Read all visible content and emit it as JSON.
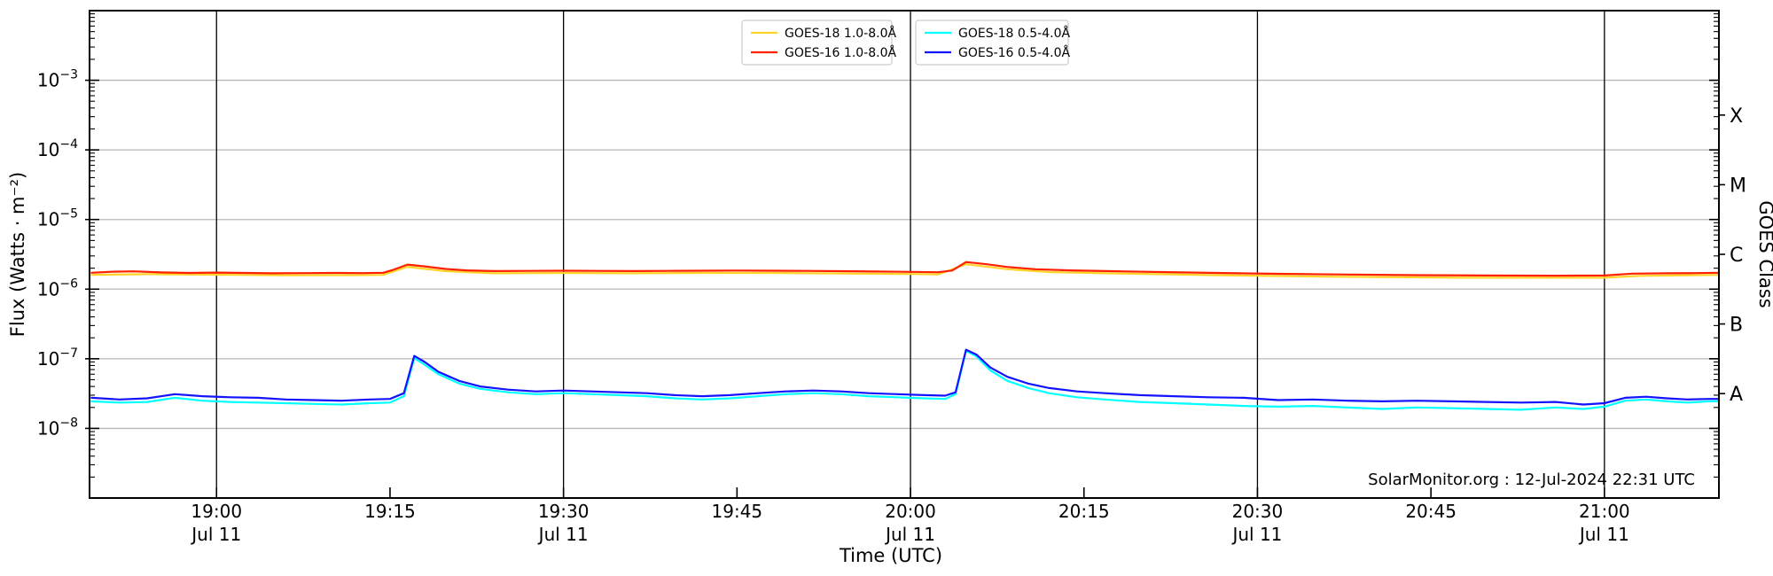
{
  "figure": {
    "background": "#ffffff",
    "frame_color": "#000000",
    "grid_color": "#b8b8b8"
  },
  "watermark": "SolarMonitor.org : 12-Jul-2024 22:31 UTC",
  "chart_data": {
    "type": "line",
    "title": "",
    "xlabel": "Time (UTC)",
    "ylabel": "Flux (Watts · m⁻²)",
    "ylabel_right": "GOES Class",
    "x_axis": {
      "unit": "hours UTC on Jul 11",
      "start_hours": 18.817,
      "end_hours": 21.165,
      "major_ticks": [
        {
          "hours": 19.0,
          "label": "19:00",
          "date": "Jul 11",
          "grid": true
        },
        {
          "hours": 19.25,
          "label": "19:15"
        },
        {
          "hours": 19.5,
          "label": "19:30",
          "date": "Jul 11",
          "grid": true
        },
        {
          "hours": 19.75,
          "label": "19:45"
        },
        {
          "hours": 20.0,
          "label": "20:00",
          "date": "Jul 11",
          "grid": true
        },
        {
          "hours": 20.25,
          "label": "20:15"
        },
        {
          "hours": 20.5,
          "label": "20:30",
          "date": "Jul 11",
          "grid": true
        },
        {
          "hours": 20.75,
          "label": "20:45"
        },
        {
          "hours": 21.0,
          "label": "21:00",
          "date": "Jul 11",
          "grid": true
        }
      ]
    },
    "y_axis": {
      "scale": "log",
      "min_exp": -9,
      "max_exp": -2,
      "tick_exponents": [
        -3,
        -4,
        -5,
        -6,
        -7,
        -8
      ],
      "grid_exponents": [
        -3,
        -4,
        -5,
        -6,
        -7,
        -8
      ]
    },
    "goes_classes": [
      {
        "label": "X",
        "center_exp": -3.5
      },
      {
        "label": "M",
        "center_exp": -4.5
      },
      {
        "label": "C",
        "center_exp": -5.5
      },
      {
        "label": "B",
        "center_exp": -6.5
      },
      {
        "label": "A",
        "center_exp": -7.5
      }
    ],
    "legend": {
      "groups": [
        {
          "entries": [
            "goes18_long",
            "goes16_long"
          ]
        },
        {
          "entries": [
            "goes18_short",
            "goes16_short"
          ]
        }
      ]
    },
    "series": [
      {
        "id": "goes18_long",
        "name": "GOES-18 1.0-8.0Å",
        "color": "#ffd42a",
        "points": [
          [
            18.82,
            1.6e-06
          ],
          [
            18.9,
            1.64e-06
          ],
          [
            19.0,
            1.61e-06
          ],
          [
            19.1,
            1.58e-06
          ],
          [
            19.2,
            1.59e-06
          ],
          [
            19.24,
            1.6e-06
          ],
          [
            19.275,
            2.09e-06
          ],
          [
            19.33,
            1.81e-06
          ],
          [
            19.4,
            1.69e-06
          ],
          [
            19.5,
            1.71e-06
          ],
          [
            19.6,
            1.69e-06
          ],
          [
            19.7,
            1.71e-06
          ],
          [
            19.8,
            1.71e-06
          ],
          [
            19.9,
            1.68e-06
          ],
          [
            20.0,
            1.65e-06
          ],
          [
            20.04,
            1.63e-06
          ],
          [
            20.08,
            2.28e-06
          ],
          [
            20.14,
            1.93e-06
          ],
          [
            20.2,
            1.76e-06
          ],
          [
            20.3,
            1.68e-06
          ],
          [
            20.44,
            1.59e-06
          ],
          [
            20.6,
            1.51e-06
          ],
          [
            20.8,
            1.46e-06
          ],
          [
            21.0,
            1.46e-06
          ],
          [
            21.05,
            1.55e-06
          ],
          [
            21.165,
            1.6e-06
          ]
        ]
      },
      {
        "id": "goes16_long",
        "name": "GOES-16 1.0-8.0Å",
        "color": "#ff2000",
        "points": [
          [
            18.82,
            1.72e-06
          ],
          [
            18.85,
            1.78e-06
          ],
          [
            18.88,
            1.8e-06
          ],
          [
            18.92,
            1.74e-06
          ],
          [
            18.96,
            1.71e-06
          ],
          [
            19.0,
            1.73e-06
          ],
          [
            19.04,
            1.71e-06
          ],
          [
            19.08,
            1.69e-06
          ],
          [
            19.13,
            1.7e-06
          ],
          [
            19.17,
            1.71e-06
          ],
          [
            19.21,
            1.7e-06
          ],
          [
            19.24,
            1.72e-06
          ],
          [
            19.255,
            1.9e-06
          ],
          [
            19.275,
            2.25e-06
          ],
          [
            19.3,
            2.12e-06
          ],
          [
            19.33,
            1.95e-06
          ],
          [
            19.36,
            1.86e-06
          ],
          [
            19.4,
            1.82e-06
          ],
          [
            19.45,
            1.83e-06
          ],
          [
            19.5,
            1.84e-06
          ],
          [
            19.55,
            1.83e-06
          ],
          [
            19.6,
            1.82e-06
          ],
          [
            19.65,
            1.83e-06
          ],
          [
            19.7,
            1.84e-06
          ],
          [
            19.75,
            1.85e-06
          ],
          [
            19.8,
            1.84e-06
          ],
          [
            19.85,
            1.83e-06
          ],
          [
            19.9,
            1.81e-06
          ],
          [
            19.95,
            1.79e-06
          ],
          [
            20.0,
            1.77e-06
          ],
          [
            20.04,
            1.75e-06
          ],
          [
            20.06,
            1.85e-06
          ],
          [
            20.08,
            2.45e-06
          ],
          [
            20.11,
            2.28e-06
          ],
          [
            20.14,
            2.08e-06
          ],
          [
            20.18,
            1.93e-06
          ],
          [
            20.23,
            1.86e-06
          ],
          [
            20.29,
            1.81e-06
          ],
          [
            20.36,
            1.76e-06
          ],
          [
            20.44,
            1.71e-06
          ],
          [
            20.53,
            1.66e-06
          ],
          [
            20.63,
            1.62e-06
          ],
          [
            20.73,
            1.59e-06
          ],
          [
            20.83,
            1.57e-06
          ],
          [
            20.93,
            1.56e-06
          ],
          [
            21.0,
            1.57e-06
          ],
          [
            21.04,
            1.67e-06
          ],
          [
            21.09,
            1.69e-06
          ],
          [
            21.13,
            1.7e-06
          ],
          [
            21.165,
            1.72e-06
          ]
        ]
      },
      {
        "id": "goes18_short",
        "name": "GOES-18 0.5-4.0Å",
        "color": "#00ffff",
        "points": [
          [
            18.82,
            2.45e-08
          ],
          [
            18.86,
            2.35e-08
          ],
          [
            18.9,
            2.4e-08
          ],
          [
            18.94,
            2.75e-08
          ],
          [
            18.98,
            2.5e-08
          ],
          [
            19.02,
            2.4e-08
          ],
          [
            19.06,
            2.35e-08
          ],
          [
            19.1,
            2.3e-08
          ],
          [
            19.14,
            2.25e-08
          ],
          [
            19.18,
            2.2e-08
          ],
          [
            19.22,
            2.3e-08
          ],
          [
            19.25,
            2.35e-08
          ],
          [
            19.27,
            2.9e-08
          ],
          [
            19.285,
            1.02e-07
          ],
          [
            19.3,
            8.2e-08
          ],
          [
            19.32,
            6e-08
          ],
          [
            19.35,
            4.4e-08
          ],
          [
            19.38,
            3.7e-08
          ],
          [
            19.42,
            3.3e-08
          ],
          [
            19.46,
            3.1e-08
          ],
          [
            19.5,
            3.2e-08
          ],
          [
            19.54,
            3.1e-08
          ],
          [
            19.58,
            3e-08
          ],
          [
            19.62,
            2.9e-08
          ],
          [
            19.66,
            2.7e-08
          ],
          [
            19.7,
            2.6e-08
          ],
          [
            19.74,
            2.7e-08
          ],
          [
            19.78,
            2.9e-08
          ],
          [
            19.82,
            3.1e-08
          ],
          [
            19.86,
            3.2e-08
          ],
          [
            19.9,
            3.1e-08
          ],
          [
            19.94,
            2.9e-08
          ],
          [
            19.98,
            2.8e-08
          ],
          [
            20.02,
            2.7e-08
          ],
          [
            20.05,
            2.65e-08
          ],
          [
            20.065,
            3.1e-08
          ],
          [
            20.08,
            1.3e-07
          ],
          [
            20.095,
            1.08e-07
          ],
          [
            20.115,
            6.8e-08
          ],
          [
            20.14,
            4.8e-08
          ],
          [
            20.17,
            3.8e-08
          ],
          [
            20.2,
            3.2e-08
          ],
          [
            20.24,
            2.8e-08
          ],
          [
            20.28,
            2.6e-08
          ],
          [
            20.33,
            2.4e-08
          ],
          [
            20.38,
            2.3e-08
          ],
          [
            20.43,
            2.2e-08
          ],
          [
            20.48,
            2.1e-08
          ],
          [
            20.53,
            2.05e-08
          ],
          [
            20.58,
            2.1e-08
          ],
          [
            20.63,
            2e-08
          ],
          [
            20.68,
            1.9e-08
          ],
          [
            20.73,
            2e-08
          ],
          [
            20.78,
            1.95e-08
          ],
          [
            20.83,
            1.9e-08
          ],
          [
            20.88,
            1.85e-08
          ],
          [
            20.93,
            2e-08
          ],
          [
            20.97,
            1.9e-08
          ],
          [
            21.0,
            2.05e-08
          ],
          [
            21.03,
            2.5e-08
          ],
          [
            21.06,
            2.6e-08
          ],
          [
            21.09,
            2.45e-08
          ],
          [
            21.12,
            2.35e-08
          ],
          [
            21.15,
            2.45e-08
          ],
          [
            21.165,
            2.45e-08
          ]
        ]
      },
      {
        "id": "goes16_short",
        "name": "GOES-16 0.5-4.0Å",
        "color": "#1313ff",
        "points": [
          [
            18.82,
            2.75e-08
          ],
          [
            18.86,
            2.6e-08
          ],
          [
            18.9,
            2.7e-08
          ],
          [
            18.94,
            3.1e-08
          ],
          [
            18.98,
            2.9e-08
          ],
          [
            19.02,
            2.8e-08
          ],
          [
            19.06,
            2.75e-08
          ],
          [
            19.1,
            2.6e-08
          ],
          [
            19.14,
            2.55e-08
          ],
          [
            19.18,
            2.5e-08
          ],
          [
            19.22,
            2.6e-08
          ],
          [
            19.25,
            2.65e-08
          ],
          [
            19.27,
            3.2e-08
          ],
          [
            19.285,
            1.1e-07
          ],
          [
            19.3,
            9e-08
          ],
          [
            19.32,
            6.5e-08
          ],
          [
            19.35,
            4.8e-08
          ],
          [
            19.38,
            4e-08
          ],
          [
            19.42,
            3.6e-08
          ],
          [
            19.46,
            3.4e-08
          ],
          [
            19.5,
            3.5e-08
          ],
          [
            19.54,
            3.4e-08
          ],
          [
            19.58,
            3.3e-08
          ],
          [
            19.62,
            3.2e-08
          ],
          [
            19.66,
            3e-08
          ],
          [
            19.7,
            2.9e-08
          ],
          [
            19.74,
            3e-08
          ],
          [
            19.78,
            3.2e-08
          ],
          [
            19.82,
            3.4e-08
          ],
          [
            19.86,
            3.5e-08
          ],
          [
            19.9,
            3.4e-08
          ],
          [
            19.94,
            3.2e-08
          ],
          [
            19.98,
            3.1e-08
          ],
          [
            20.02,
            3e-08
          ],
          [
            20.05,
            2.95e-08
          ],
          [
            20.065,
            3.3e-08
          ],
          [
            20.08,
            1.35e-07
          ],
          [
            20.095,
            1.15e-07
          ],
          [
            20.115,
            7.5e-08
          ],
          [
            20.14,
            5.5e-08
          ],
          [
            20.17,
            4.4e-08
          ],
          [
            20.2,
            3.8e-08
          ],
          [
            20.24,
            3.4e-08
          ],
          [
            20.28,
            3.2e-08
          ],
          [
            20.33,
            3e-08
          ],
          [
            20.38,
            2.9e-08
          ],
          [
            20.43,
            2.8e-08
          ],
          [
            20.48,
            2.75e-08
          ],
          [
            20.53,
            2.55e-08
          ],
          [
            20.58,
            2.6e-08
          ],
          [
            20.63,
            2.5e-08
          ],
          [
            20.68,
            2.45e-08
          ],
          [
            20.73,
            2.5e-08
          ],
          [
            20.78,
            2.45e-08
          ],
          [
            20.83,
            2.4e-08
          ],
          [
            20.88,
            2.35e-08
          ],
          [
            20.93,
            2.4e-08
          ],
          [
            20.97,
            2.2e-08
          ],
          [
            21.0,
            2.3e-08
          ],
          [
            21.03,
            2.75e-08
          ],
          [
            21.06,
            2.85e-08
          ],
          [
            21.09,
            2.7e-08
          ],
          [
            21.12,
            2.6e-08
          ],
          [
            21.15,
            2.65e-08
          ],
          [
            21.165,
            2.65e-08
          ]
        ]
      }
    ]
  }
}
